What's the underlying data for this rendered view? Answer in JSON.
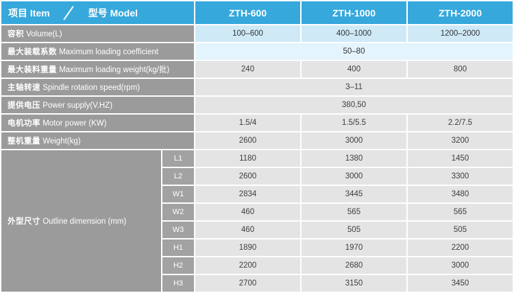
{
  "colors": {
    "header_blue": "#36a8dc",
    "label_gray": "#9b9b9b",
    "sublabel_gray": "#a2a2a2",
    "value_gray": "#e4e4e4",
    "volume_row_blue": "#cfe9f7",
    "coefficient_row_blue": "#e3f4fc",
    "text_white": "#ffffff",
    "text_dark": "#3d3d3d"
  },
  "header": {
    "item_label": "项目 Item",
    "model_label": "型号 Model",
    "models": [
      "ZTH-600",
      "ZTH-1000",
      "ZTH-2000"
    ]
  },
  "rows": [
    {
      "label_zh": "容积",
      "label_en": "Volume(L)",
      "values": [
        "100–600",
        "400–1000",
        "1200–2000"
      ]
    },
    {
      "label_zh": "最大装载系数",
      "label_en": "Maximum loading coefficient",
      "span_value": "50–80"
    },
    {
      "label_zh": "最大装料重量",
      "label_en": "Maximum loading weight(kg/批)",
      "values": [
        "240",
        "400",
        "800"
      ]
    },
    {
      "label_zh": "主轴转速",
      "label_en": "Spindle rotation speed(rpm)",
      "span_value": "3–11"
    },
    {
      "label_zh": "提供电压",
      "label_en": "Power supply(V.HZ)",
      "span_value": "380,50"
    },
    {
      "label_zh": "电机功率",
      "label_en": "Motor power (KW)",
      "values": [
        "1.5/4",
        "1.5/5.5",
        "2.2/7.5"
      ]
    },
    {
      "label_zh": "整机重量",
      "label_en": "Weight(kg)",
      "values": [
        "2600",
        "3000",
        "3200"
      ]
    }
  ],
  "dimension_group": {
    "label_zh": "外型尺寸",
    "label_en": "Outline dimension (mm)",
    "rows": [
      {
        "sub": "L1",
        "values": [
          "1180",
          "1380",
          "1450"
        ]
      },
      {
        "sub": "L2",
        "values": [
          "2600",
          "3000",
          "3300"
        ]
      },
      {
        "sub": "W1",
        "values": [
          "2834",
          "3445",
          "3480"
        ]
      },
      {
        "sub": "W2",
        "values": [
          "460",
          "565",
          "565"
        ]
      },
      {
        "sub": "W3",
        "values": [
          "460",
          "505",
          "505"
        ]
      },
      {
        "sub": "H1",
        "values": [
          "1890",
          "1970",
          "2200"
        ]
      },
      {
        "sub": "H2",
        "values": [
          "2200",
          "2680",
          "3000"
        ]
      },
      {
        "sub": "H3",
        "values": [
          "2700",
          "3150",
          "3450"
        ]
      }
    ]
  }
}
